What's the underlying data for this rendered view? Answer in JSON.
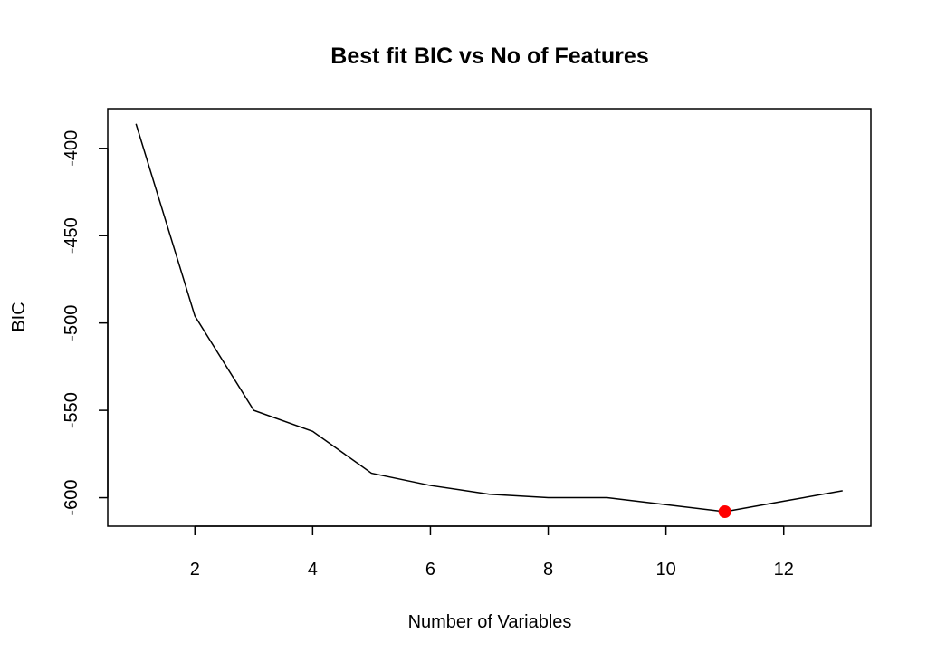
{
  "chart_data": {
    "type": "line",
    "title": "Best fit BIC vs No of Features",
    "xlabel": "Number of Variables",
    "ylabel": "BIC",
    "x": [
      1,
      2,
      3,
      4,
      5,
      6,
      7,
      8,
      9,
      10,
      11,
      12,
      13
    ],
    "series": [
      {
        "values": [
          -386,
          -496,
          -550,
          -562,
          -586,
          -593,
          -598,
          -600,
          -600,
          -604,
          -608,
          -602,
          -596
        ],
        "color": "#000000"
      }
    ],
    "highlight": {
      "x": 11,
      "y": -608,
      "color": "#ff0000"
    },
    "xlim": [
      0.52,
      13.48
    ],
    "ylim": [
      -616.3,
      -377.3
    ],
    "xticks": [
      2,
      4,
      6,
      8,
      10,
      12
    ],
    "yticks": [
      -400,
      -450,
      -500,
      -550,
      -600
    ],
    "grid": false,
    "legend": "none"
  }
}
